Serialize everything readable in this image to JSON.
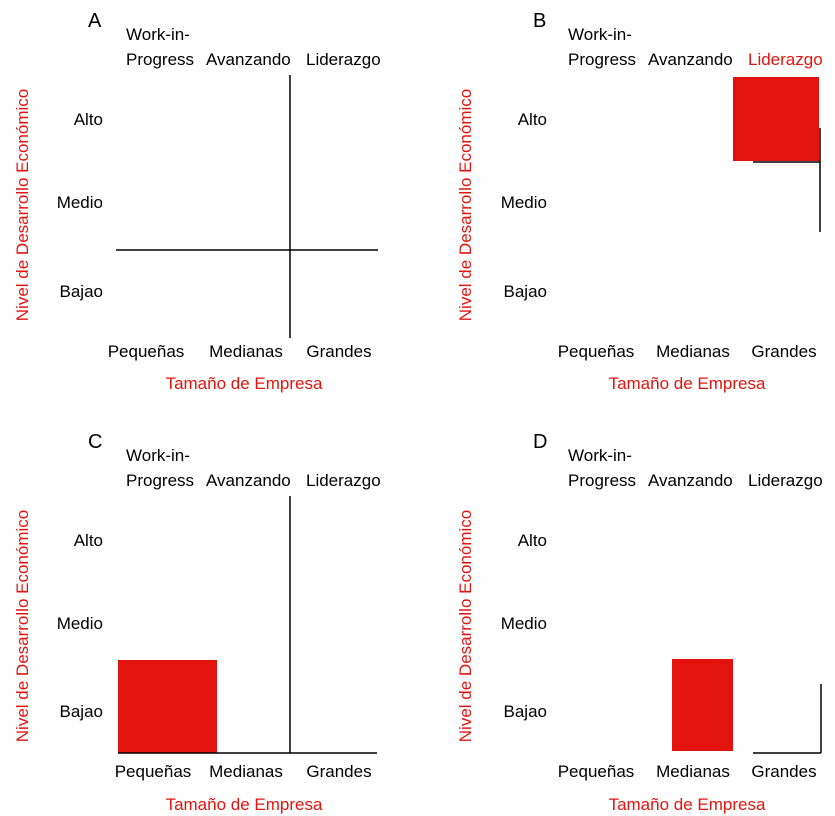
{
  "colors": {
    "accent": "#e3140f",
    "ink": "#000000"
  },
  "panels": [
    {
      "letter": "A",
      "header": {
        "line1": "Work-in-",
        "line2": "Progress",
        "avanzando": "Avanzando",
        "liderazgo": "Liderazgo",
        "highlight_liderazgo": false
      },
      "rows": [
        "Alto",
        "Medio",
        "Bajao"
      ],
      "cols": [
        "Pequeñas",
        "Medianas",
        "Grandes"
      ],
      "ylabel": "Nivel de Desarrollo Económico",
      "xlabel": "Tamaño de Empresa",
      "highlight": null
    },
    {
      "letter": "B",
      "header": {
        "line1": "Work-in-",
        "line2": "Progress",
        "avanzando": "Avanzando",
        "liderazgo": "Liderazgo",
        "highlight_liderazgo": true
      },
      "rows": [
        "Alto",
        "Medio",
        "Bajao"
      ],
      "cols": [
        "Pequeñas",
        "Medianas",
        "Grandes"
      ],
      "ylabel": "Nivel de Desarrollo Económico",
      "xlabel": "Tamaño de Empresa",
      "highlight": {
        "row": "Alto",
        "col": "Grandes"
      }
    },
    {
      "letter": "C",
      "header": {
        "line1": "Work-in-",
        "line2": "Progress",
        "avanzando": "Avanzando",
        "liderazgo": "Liderazgo",
        "highlight_liderazgo": false
      },
      "rows": [
        "Alto",
        "Medio",
        "Bajao"
      ],
      "cols": [
        "Pequeñas",
        "Medianas",
        "Grandes"
      ],
      "ylabel": "Nivel de Desarrollo Económico",
      "xlabel": "Tamaño de Empresa",
      "highlight": {
        "row": "Bajao",
        "col": "Pequeñas"
      }
    },
    {
      "letter": "D",
      "header": {
        "line1": "Work-in-",
        "line2": "Progress",
        "avanzando": "Avanzando",
        "liderazgo": "Liderazgo",
        "highlight_liderazgo": false
      },
      "rows": [
        "Alto",
        "Medio",
        "Bajao"
      ],
      "cols": [
        "Pequeñas",
        "Medianas",
        "Grandes"
      ],
      "ylabel": "Nivel de Desarrollo Económico",
      "xlabel": "Tamaño de Empresa",
      "highlight": {
        "row": "Bajao",
        "col": "Medianas"
      }
    }
  ]
}
